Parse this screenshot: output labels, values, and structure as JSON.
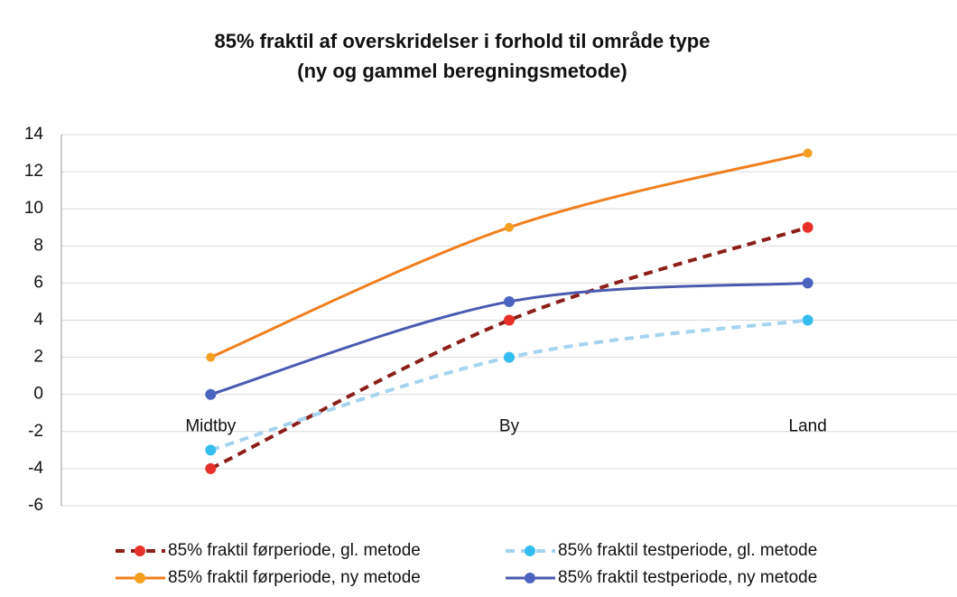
{
  "chart_data": {
    "type": "line",
    "title": "85% fraktil af overskridelser i forhold til område type",
    "subtitle": "(ny og gammel beregningsmetode)",
    "categories": [
      "Midtby",
      "By",
      "Land"
    ],
    "series": [
      {
        "name": "85% fraktil førperiode, gl. metode",
        "color": "#8b1f1a",
        "marker_color": "#e8302a",
        "dashed": true,
        "values": [
          -4,
          4,
          9
        ]
      },
      {
        "name": "85% fraktil testperiode, gl. metode",
        "color": "#a6d3f0",
        "marker_color": "#35bdf0",
        "dashed": true,
        "values": [
          -3,
          2,
          4
        ]
      },
      {
        "name": "85% fraktil førperiode, ny metode",
        "color": "#f07f1e",
        "marker_color": "#f5a020",
        "dashed": false,
        "values": [
          2,
          9,
          13
        ]
      },
      {
        "name": "85% fraktil testperiode, ny metode",
        "color": "#4a5ab0",
        "marker_color": "#4a64c0",
        "dashed": false,
        "values": [
          0,
          5,
          6
        ]
      }
    ],
    "ylim": [
      -6,
      14
    ],
    "yticks": [
      -6,
      -4,
      -2,
      0,
      2,
      4,
      6,
      8,
      10,
      12,
      14
    ],
    "grid": true,
    "smooth": true
  }
}
